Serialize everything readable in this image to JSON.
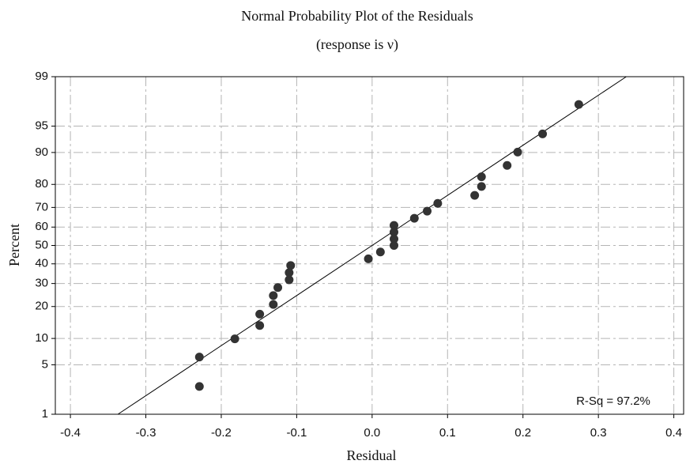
{
  "chart_data": {
    "type": "scatter",
    "title": "Normal Probability Plot of the Residuals",
    "subtitle": "(response is ν)",
    "x_label": "Residual",
    "y_label": "Percent",
    "annotation": "R-Sq = 97.2%",
    "yscale": "probability",
    "grid": true,
    "color": "#333333",
    "x": [
      -0.229,
      -0.229,
      -0.182,
      -0.149,
      -0.149,
      -0.131,
      -0.131,
      -0.125,
      -0.11,
      -0.11,
      -0.108,
      -0.005,
      0.011,
      0.029,
      0.029,
      0.029,
      0.029,
      0.056,
      0.073,
      0.087,
      0.136,
      0.145,
      0.145,
      0.179,
      0.193,
      0.226,
      0.274
    ],
    "values": [
      2.6,
      6.2,
      9.9,
      13.5,
      17.2,
      20.8,
      24.5,
      28.1,
      31.8,
      35.4,
      39.1,
      42.7,
      46.4,
      50.0,
      53.6,
      57.3,
      60.9,
      64.6,
      68.2,
      71.9,
      75.5,
      79.2,
      82.8,
      86.5,
      90.1,
      93.8,
      97.4
    ],
    "fit_line": {
      "x": [
        -0.337,
        0.337
      ],
      "y": [
        1,
        99
      ]
    },
    "xlim": [
      -0.42,
      0.413
    ],
    "xticks": [
      -0.4,
      -0.3,
      -0.2,
      -0.1,
      {
        "value": 0,
        "label": "0.0"
      },
      0.1,
      0.2,
      0.3,
      0.4
    ],
    "ylim": [
      1,
      99
    ],
    "yticks": [
      1,
      5,
      10,
      20,
      30,
      40,
      50,
      60,
      70,
      80,
      90,
      95,
      99
    ]
  }
}
